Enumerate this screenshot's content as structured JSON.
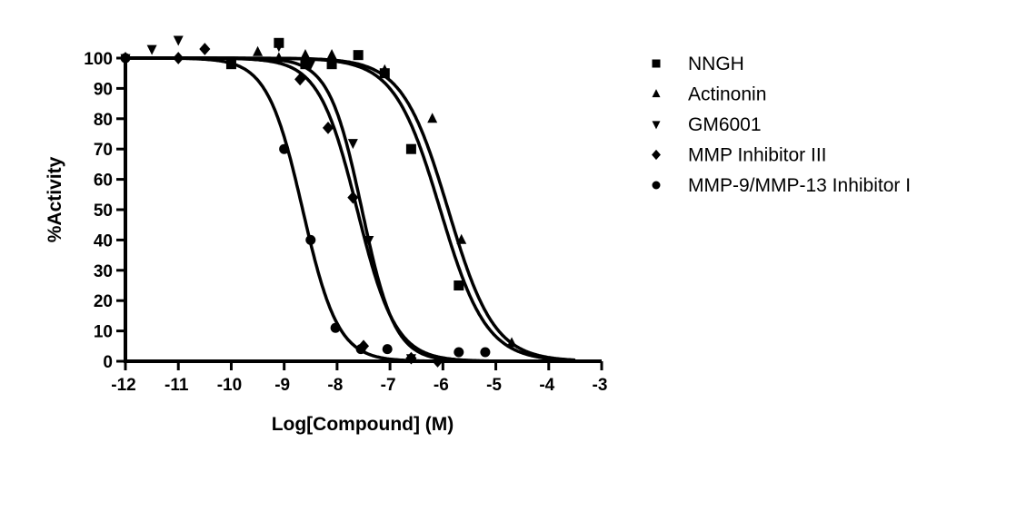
{
  "chart_data": {
    "type": "scatter",
    "title": "",
    "xlabel": "Log[Compound] (M)",
    "ylabel": "%Activity",
    "xlim": [
      -12,
      -3
    ],
    "ylim": [
      0,
      100
    ],
    "x_ticks": [
      -12,
      -11,
      -10,
      -9,
      -8,
      -7,
      -6,
      -5,
      -4,
      -3
    ],
    "y_ticks": [
      0,
      10,
      20,
      30,
      40,
      50,
      60,
      70,
      80,
      90,
      100
    ],
    "grid": false,
    "legend_position": "right",
    "fit": "sigmoidal dose-response (4PL)",
    "series": [
      {
        "name": "NNGH",
        "marker": "square",
        "logIC50": -6.05,
        "hill": 1.0,
        "top": 100,
        "bottom": 0,
        "points": [
          [
            -10.0,
            98
          ],
          [
            -9.1,
            105
          ],
          [
            -8.6,
            98
          ],
          [
            -8.1,
            98
          ],
          [
            -7.6,
            101
          ],
          [
            -7.1,
            95
          ],
          [
            -6.6,
            70
          ],
          [
            -5.7,
            25
          ]
        ]
      },
      {
        "name": "Actinonin",
        "marker": "triangle-up",
        "logIC50": -5.9,
        "hill": 1.0,
        "top": 100,
        "bottom": 0,
        "points": [
          [
            -9.5,
            102
          ],
          [
            -9.1,
            100
          ],
          [
            -8.6,
            101
          ],
          [
            -8.1,
            101
          ],
          [
            -7.1,
            96
          ],
          [
            -6.2,
            80
          ],
          [
            -5.65,
            40
          ],
          [
            -4.7,
            6
          ]
        ]
      },
      {
        "name": "GM6001",
        "marker": "triangle-down",
        "logIC50": -7.53,
        "hill": 1.4,
        "top": 100,
        "bottom": 0,
        "points": [
          [
            -12.0,
            100
          ],
          [
            -11.5,
            103
          ],
          [
            -11.0,
            106
          ],
          [
            -9.1,
            104
          ],
          [
            -8.5,
            98
          ],
          [
            -7.7,
            72
          ],
          [
            -7.4,
            40
          ],
          [
            -6.6,
            1
          ]
        ]
      },
      {
        "name": "MMP Inhibitor III",
        "marker": "diamond",
        "logIC50": -7.62,
        "hill": 1.2,
        "top": 100,
        "bottom": 0,
        "points": [
          [
            -12.0,
            100
          ],
          [
            -11.0,
            100
          ],
          [
            -10.5,
            103
          ],
          [
            -8.7,
            93
          ],
          [
            -8.17,
            77
          ],
          [
            -7.7,
            54
          ],
          [
            -7.5,
            5
          ],
          [
            -6.6,
            1
          ],
          [
            -6.1,
            0
          ]
        ]
      },
      {
        "name": "MMP-9/MMP-13 Inhibitor I",
        "marker": "circle",
        "logIC50": -8.65,
        "hill": 1.3,
        "top": 100,
        "bottom": 0,
        "points": [
          [
            -12.0,
            100
          ],
          [
            -9.0,
            70
          ],
          [
            -8.5,
            40
          ],
          [
            -8.03,
            11
          ],
          [
            -7.55,
            4
          ],
          [
            -7.05,
            4
          ],
          [
            -5.7,
            3
          ],
          [
            -5.2,
            3
          ]
        ]
      }
    ]
  },
  "legend": {
    "items": [
      {
        "label": "NNGH",
        "marker": "square"
      },
      {
        "label": "Actinonin",
        "marker": "triangle-up"
      },
      {
        "label": "GM6001",
        "marker": "triangle-down"
      },
      {
        "label": "MMP Inhibitor III",
        "marker": "diamond"
      },
      {
        "label": "MMP-9/MMP-13 Inhibitor I",
        "marker": "circle"
      }
    ]
  },
  "colors": {
    "foreground": "#000000",
    "background": "#ffffff"
  }
}
